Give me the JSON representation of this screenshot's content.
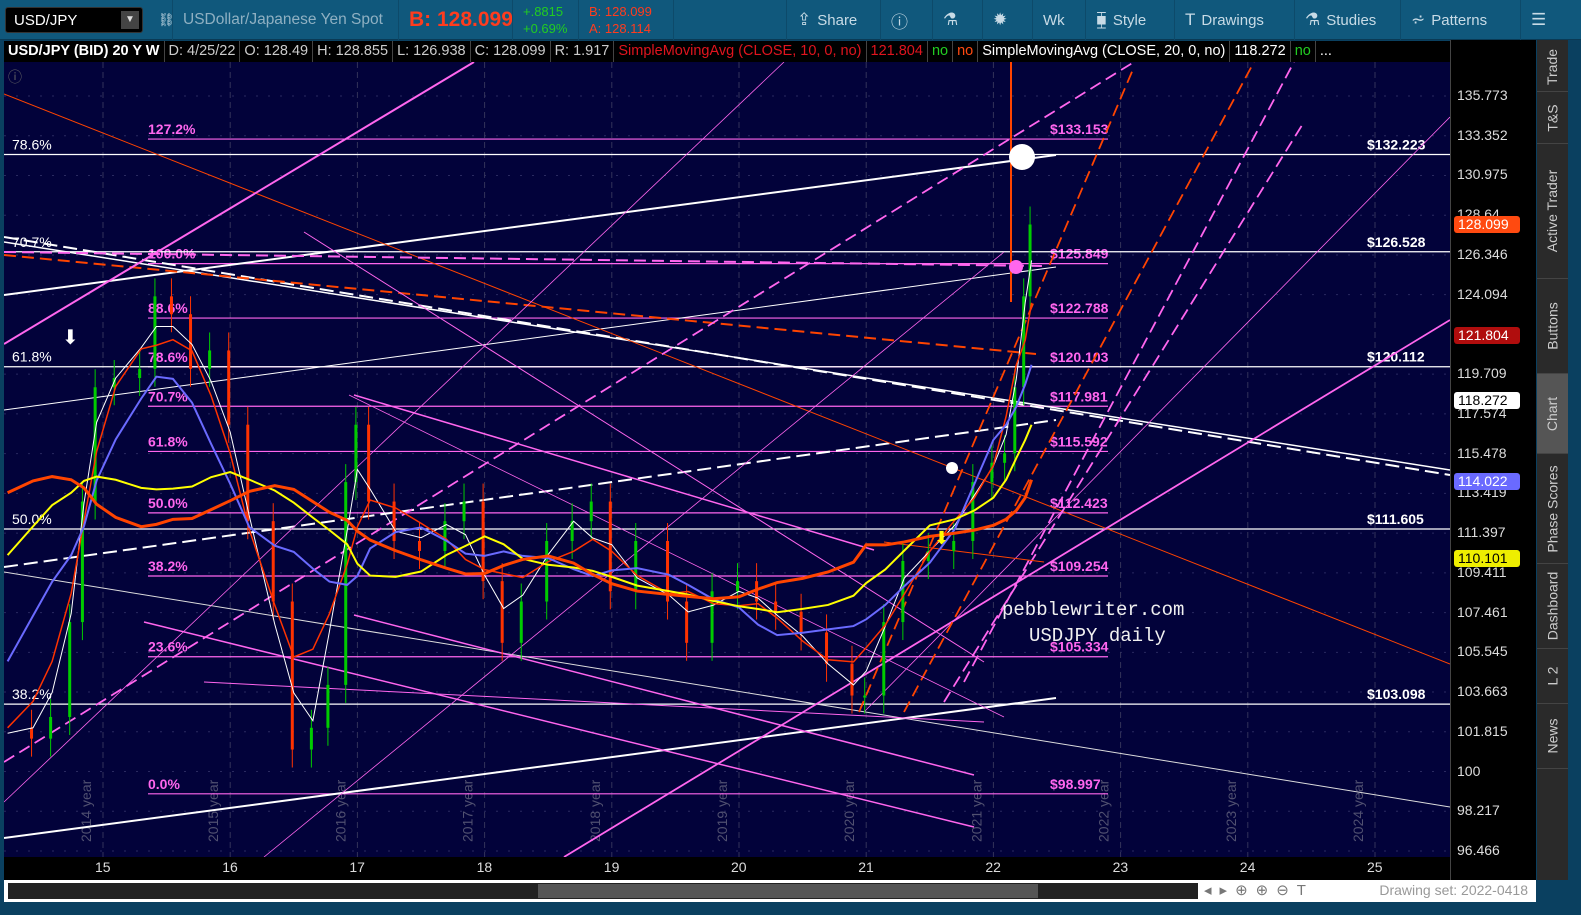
{
  "toolbar": {
    "symbol": "USD/JPY",
    "description": "USDollar/Japanese Yen Spot",
    "bid_big": "B: 128.099",
    "change": "+.8815",
    "change_pct": "+0.69%",
    "bid": "B: 128.099",
    "ask": "A: 128.114",
    "buttons": [
      {
        "label": "Share",
        "icon": "share-icon"
      },
      {
        "label": "",
        "icon": "info-icon"
      },
      {
        "label": "",
        "icon": "flask-icon"
      },
      {
        "label": "",
        "icon": "gear-icon"
      },
      {
        "label": "Wk",
        "icon": ""
      },
      {
        "label": "Style",
        "icon": "candle-icon"
      },
      {
        "label": "Drawings",
        "icon": "text-tool-icon"
      },
      {
        "label": "Studies",
        "icon": "flask-icon"
      },
      {
        "label": "Patterns",
        "icon": "patterns-icon"
      },
      {
        "label": "",
        "icon": "menu-icon"
      }
    ]
  },
  "header": {
    "title": "USD/JPY (BID) 20 Y W",
    "date": "D: 4/25/22",
    "open": "O: 128.49",
    "high": "H: 128.855",
    "low": "L: 126.938",
    "close": "C: 128.099",
    "range": "R: 1.917",
    "study1": "SimpleMovingAvg (CLOSE, 10, 0, no)",
    "study1_value": "121.804",
    "no1": "no",
    "no2": "no",
    "study2": "SimpleMovingAvg (CLOSE, 20, 0, no)",
    "study2_value": "118.272",
    "no3": "no",
    "more": "..."
  },
  "side_tabs": [
    "Trade",
    "T&S",
    "Active Trader",
    "Buttons",
    "Chart",
    "Phase Scores",
    "Dashboard",
    "L 2",
    "News"
  ],
  "active_side_tab": "Chart",
  "bottom": {
    "drawing_set": "Drawing set: 2022-0418"
  },
  "watermark": [
    "pebblewriter.com",
    "USDJPY daily"
  ],
  "colors": {
    "toolbar": "#10587c",
    "chart_bg": "#02023a",
    "up": "#00cc00",
    "down": "#ff3300",
    "fib": "#ff66ee",
    "sma10": "#ff3300",
    "sma20": "#ffffff",
    "sma50": "#6a6aff",
    "sma100": "#ffff00",
    "sma200": "#ff4400"
  },
  "chart_data": {
    "type": "candlestick",
    "scale": "log",
    "ylim": [
      96.466,
      135.773
    ],
    "xlim": [
      2014.22,
      2025.6
    ],
    "y_ticks": [
      "135.773",
      "133.352",
      "130.975",
      "128.64",
      "126.346",
      "124.094",
      "119.709",
      "117.574",
      "115.478",
      "113.419",
      "111.397",
      "109.411",
      "107.461",
      "105.545",
      "103.663",
      "101.815",
      "100",
      "98.217",
      "96.466"
    ],
    "x_ticks": [
      "15",
      "16",
      "17",
      "18",
      "19",
      "20",
      "21",
      "22",
      "23",
      "24",
      "25"
    ],
    "year_labels": [
      "2014 year",
      "2015 year",
      "2016 year",
      "2017 year",
      "2018 year",
      "2019 year",
      "2020 year",
      "2021 year",
      "2022 year",
      "2023 year",
      "2024 year"
    ],
    "price_badges": [
      {
        "value": "128.099",
        "color": "#ff4a10",
        "text": "#fff"
      },
      {
        "value": "121.804",
        "color": "#b00d0d",
        "text": "#fff"
      },
      {
        "value": "118.272",
        "color": "#ffffff",
        "text": "#000"
      },
      {
        "value": "114.022",
        "color": "#6a6aff",
        "text": "#fff"
      },
      {
        "value": "110.101",
        "color": "#eeee00",
        "text": "#000"
      }
    ],
    "fib_pink": [
      {
        "pct": "127.2%",
        "price": "$133.153",
        "v": 133.153
      },
      {
        "pct": "100.0%",
        "price": "$125.849",
        "v": 125.849
      },
      {
        "pct": "88.6%",
        "price": "$122.788",
        "v": 122.788
      },
      {
        "pct": "78.6%",
        "price": "$120.103",
        "v": 120.103
      },
      {
        "pct": "70.7%",
        "price": "$117.981",
        "v": 117.981
      },
      {
        "pct": "61.8%",
        "price": "$115.592",
        "v": 115.592
      },
      {
        "pct": "50.0%",
        "price": "$112.423",
        "v": 112.423
      },
      {
        "pct": "38.2%",
        "price": "$109.254",
        "v": 109.254
      },
      {
        "pct": "23.6%",
        "price": "$105.334",
        "v": 105.334
      },
      {
        "pct": "0.0%",
        "price": "$98.997",
        "v": 98.997
      }
    ],
    "fib_white": [
      {
        "pct": "78.6%",
        "price": "$132.223",
        "v": 132.223
      },
      {
        "pct": "70.7%",
        "price": "$126.528",
        "v": 126.528
      },
      {
        "pct": "61.8%",
        "price": "$120.112",
        "v": 120.112
      },
      {
        "pct": "50.0%",
        "price": "$111.605",
        "v": 111.605
      },
      {
        "pct": "38.2%",
        "price": "$103.098",
        "v": 103.098
      }
    ],
    "close": [
      [
        2014.25,
        102
      ],
      [
        2014.45,
        101.5
      ],
      [
        2014.6,
        102.5
      ],
      [
        2014.75,
        107
      ],
      [
        2014.85,
        113
      ],
      [
        2014.95,
        119
      ],
      [
        2015.1,
        119.5
      ],
      [
        2015.3,
        120
      ],
      [
        2015.42,
        124
      ],
      [
        2015.55,
        123
      ],
      [
        2015.7,
        120
      ],
      [
        2015.85,
        121
      ],
      [
        2016.0,
        117
      ],
      [
        2016.15,
        112
      ],
      [
        2016.35,
        108
      ],
      [
        2016.5,
        101
      ],
      [
        2016.65,
        102
      ],
      [
        2016.78,
        104
      ],
      [
        2016.92,
        114
      ],
      [
        2017.0,
        117
      ],
      [
        2017.1,
        113
      ],
      [
        2017.3,
        111
      ],
      [
        2017.5,
        110.5
      ],
      [
        2017.7,
        112
      ],
      [
        2017.85,
        113
      ],
      [
        2018.0,
        109
      ],
      [
        2018.15,
        106
      ],
      [
        2018.3,
        108
      ],
      [
        2018.5,
        111
      ],
      [
        2018.7,
        112
      ],
      [
        2018.85,
        113
      ],
      [
        2019.0,
        108.5
      ],
      [
        2019.2,
        111
      ],
      [
        2019.45,
        108
      ],
      [
        2019.6,
        106
      ],
      [
        2019.8,
        108.5
      ],
      [
        2020.0,
        109
      ],
      [
        2020.15,
        108
      ],
      [
        2020.3,
        107.5
      ],
      [
        2020.5,
        106.5
      ],
      [
        2020.7,
        105
      ],
      [
        2020.9,
        103.5
      ],
      [
        2021.0,
        103.5
      ],
      [
        2021.15,
        107
      ],
      [
        2021.3,
        110
      ],
      [
        2021.5,
        110.5
      ],
      [
        2021.7,
        111
      ],
      [
        2021.85,
        114
      ],
      [
        2022.0,
        115
      ],
      [
        2022.1,
        115.5
      ],
      [
        2022.18,
        119
      ],
      [
        2022.25,
        124
      ],
      [
        2022.3,
        128.1
      ]
    ]
  }
}
